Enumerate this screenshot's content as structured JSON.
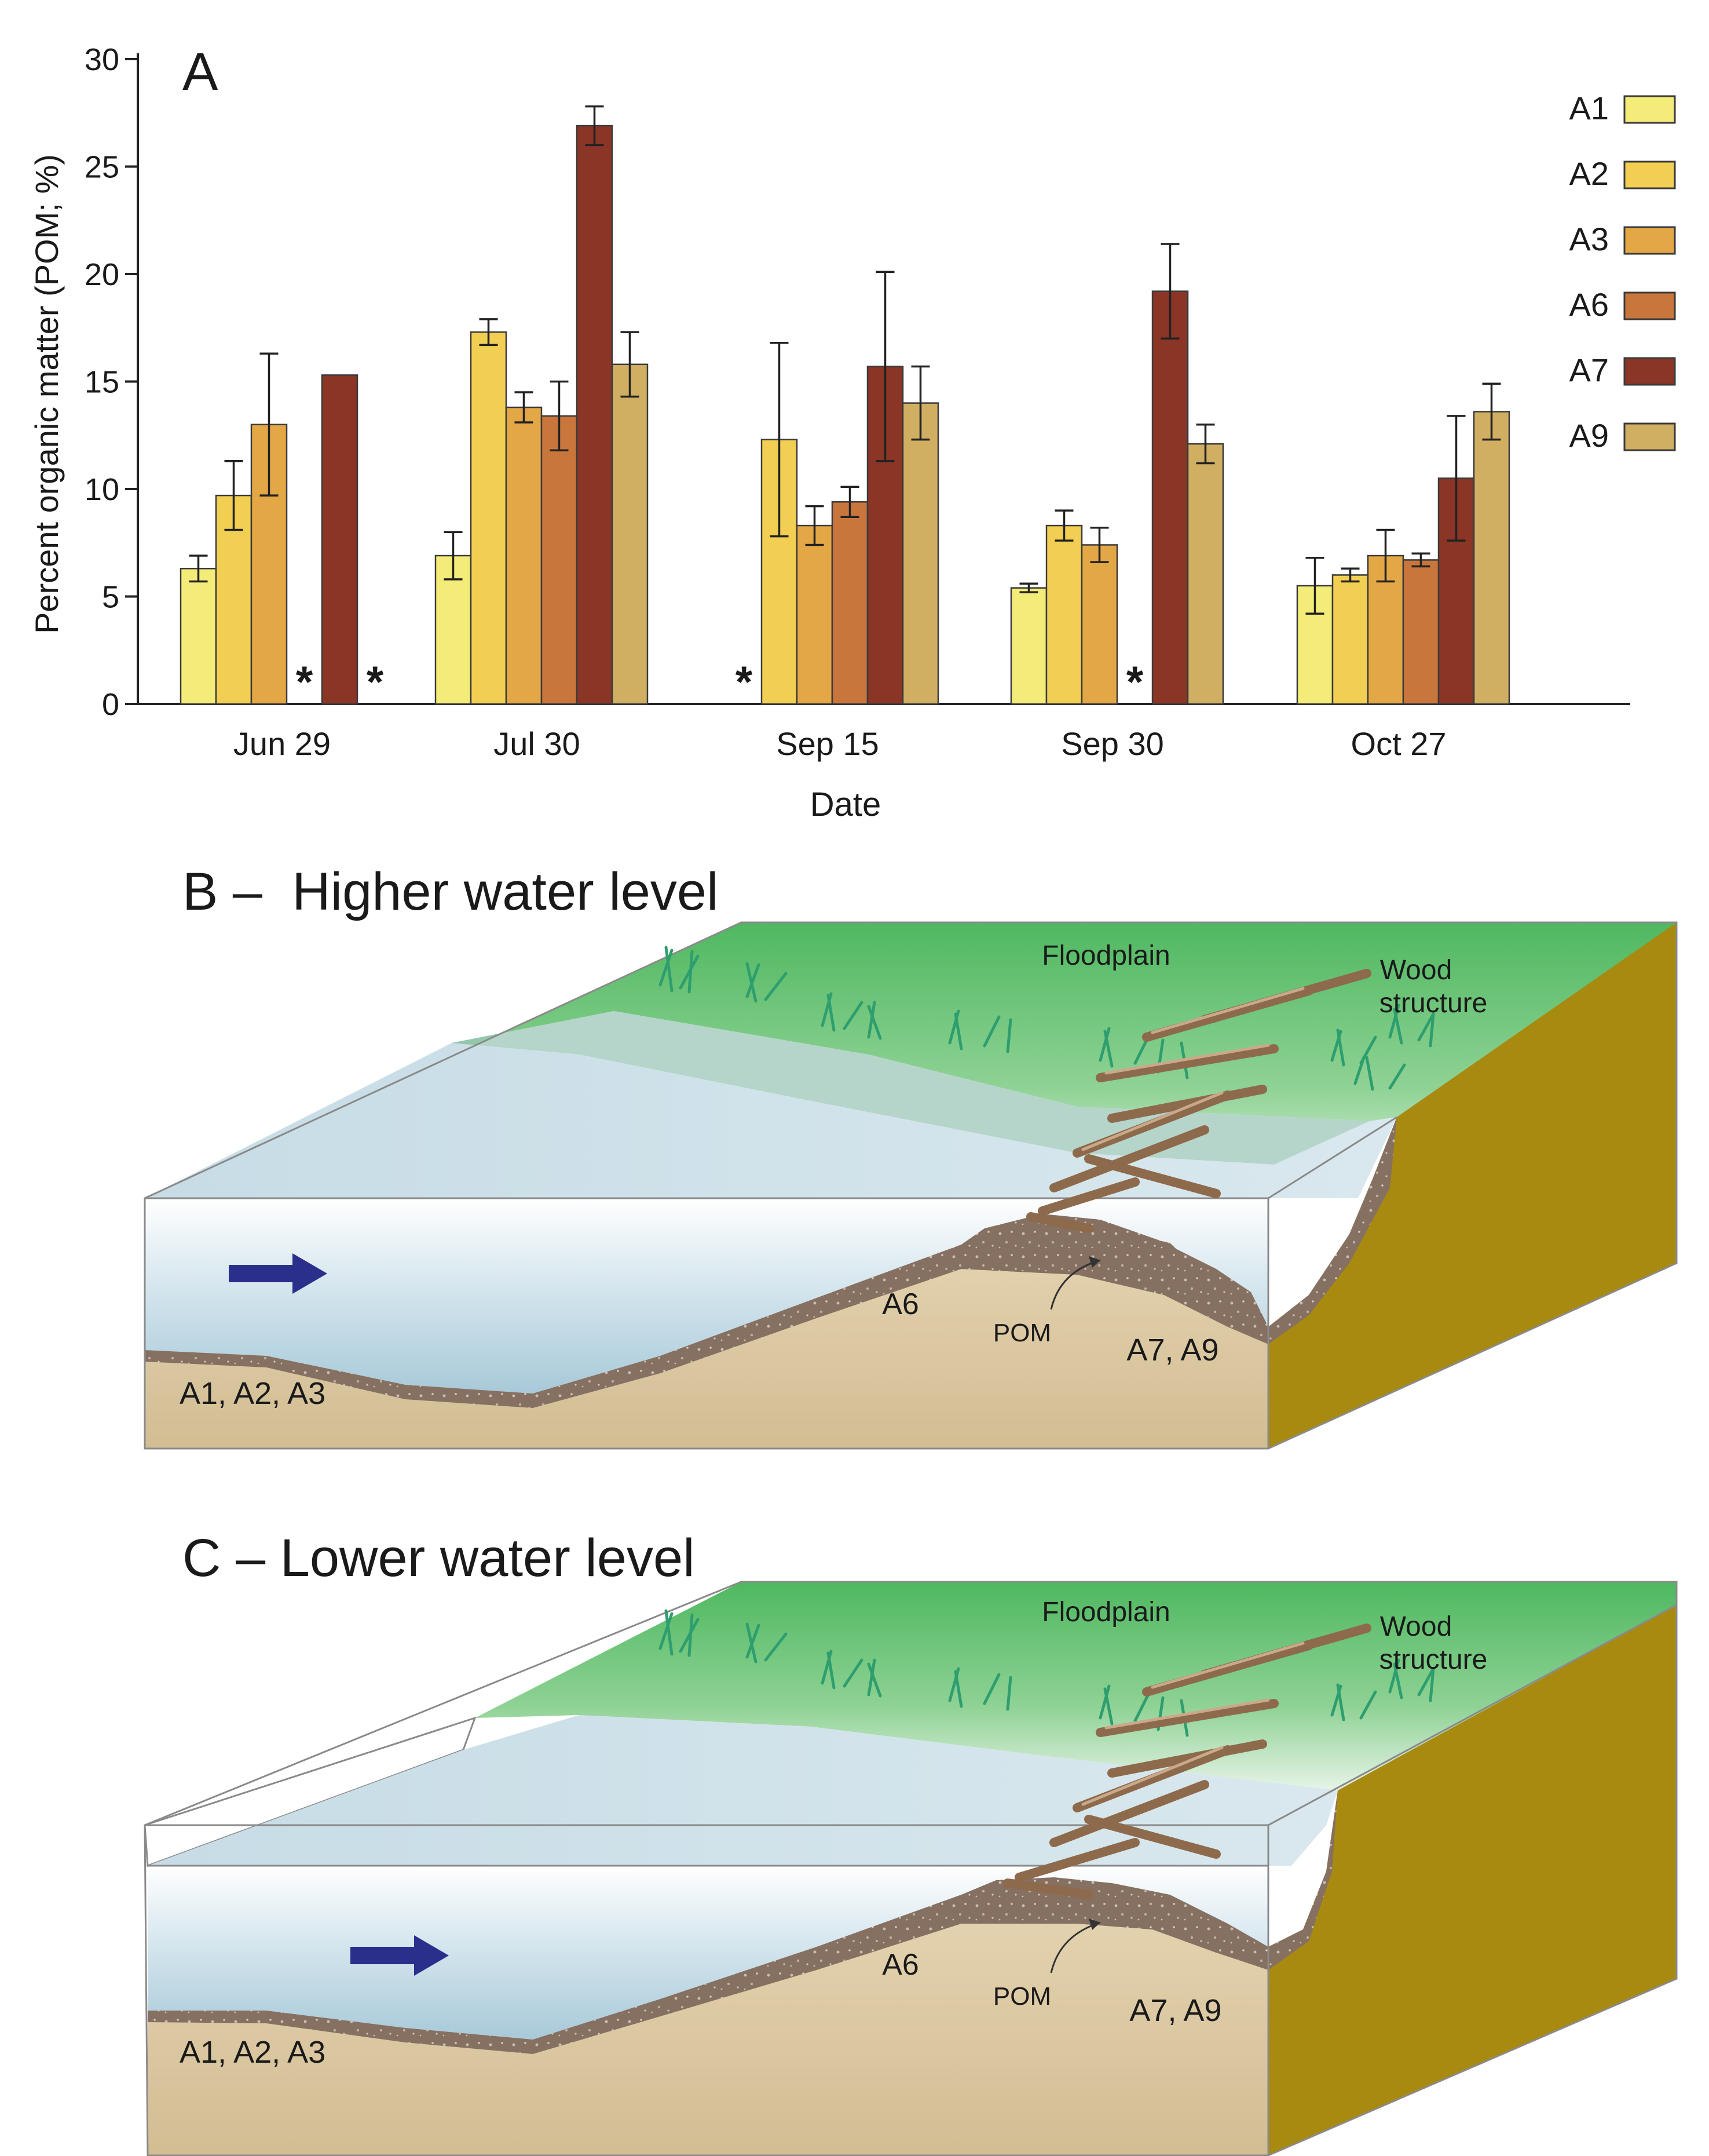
{
  "panel_a": {
    "letter": "A",
    "chart_data": {
      "type": "bar",
      "title": "",
      "xlabel": "Date",
      "ylabel": "Percent organic matter (POM; %)",
      "ylim": [
        0,
        30
      ],
      "yticks": [
        0,
        5,
        10,
        15,
        20,
        25,
        30
      ],
      "grid": false,
      "legend_position": "right",
      "categories": [
        "Jun 29",
        "Jul 30",
        "Sep 15",
        "Sep 30",
        "Oct 27"
      ],
      "missing_marker": "*",
      "series": [
        {
          "name": "A1",
          "color": "#f4ec78",
          "values": [
            6.3,
            6.9,
            null,
            5.4,
            5.5
          ],
          "errors": [
            0.6,
            1.1,
            null,
            0.2,
            1.3
          ]
        },
        {
          "name": "A2",
          "color": "#f2cf52",
          "values": [
            9.7,
            17.3,
            12.3,
            8.3,
            6.0
          ],
          "errors": [
            1.6,
            0.6,
            4.5,
            0.7,
            0.3
          ]
        },
        {
          "name": "A3",
          "color": "#e4a746",
          "values": [
            13.0,
            13.8,
            8.3,
            7.4,
            6.9
          ],
          "errors": [
            3.3,
            0.7,
            0.9,
            0.8,
            1.2
          ]
        },
        {
          "name": "A6",
          "color": "#c9763c",
          "values": [
            null,
            13.4,
            9.4,
            null,
            6.7
          ],
          "errors": [
            null,
            1.6,
            0.7,
            null,
            0.3
          ]
        },
        {
          "name": "A7",
          "color": "#8a3526",
          "values": [
            15.3,
            26.9,
            15.7,
            19.2,
            10.5
          ],
          "errors": [
            null,
            0.9,
            4.4,
            2.2,
            2.9
          ]
        },
        {
          "name": "A9",
          "color": "#d0ae62",
          "values": [
            null,
            15.8,
            14.0,
            12.1,
            13.6
          ],
          "errors": [
            null,
            1.5,
            1.7,
            0.9,
            1.3
          ]
        }
      ]
    }
  },
  "panel_b": {
    "title": "B –  Higher water level",
    "labels": {
      "floodplain": "Floodplain",
      "wood_line1": "Wood",
      "wood_line2": "structure",
      "a6": "A6",
      "pom": "POM",
      "a7_a9": "A7, A9",
      "a1_a3": "A1, A2, A3"
    }
  },
  "panel_c": {
    "title": "C – Lower water level",
    "labels": {
      "floodplain": "Floodplain",
      "wood_line1": "Wood",
      "wood_line2": "structure",
      "a6": "A6",
      "pom": "POM",
      "a7_a9": "A7, A9",
      "a1_a3": "A1, A2, A3"
    }
  },
  "colors": {
    "floodplain_green": "#5cbf6a",
    "water_surface": "#c9dde6",
    "water_section": "#b7d3e0",
    "sand": "#dcc9a4",
    "gravel": "#8a7668",
    "bank_side": "#a88a10",
    "flow_arrow": "#2b2f8c",
    "wood": "#8e6a4c"
  }
}
